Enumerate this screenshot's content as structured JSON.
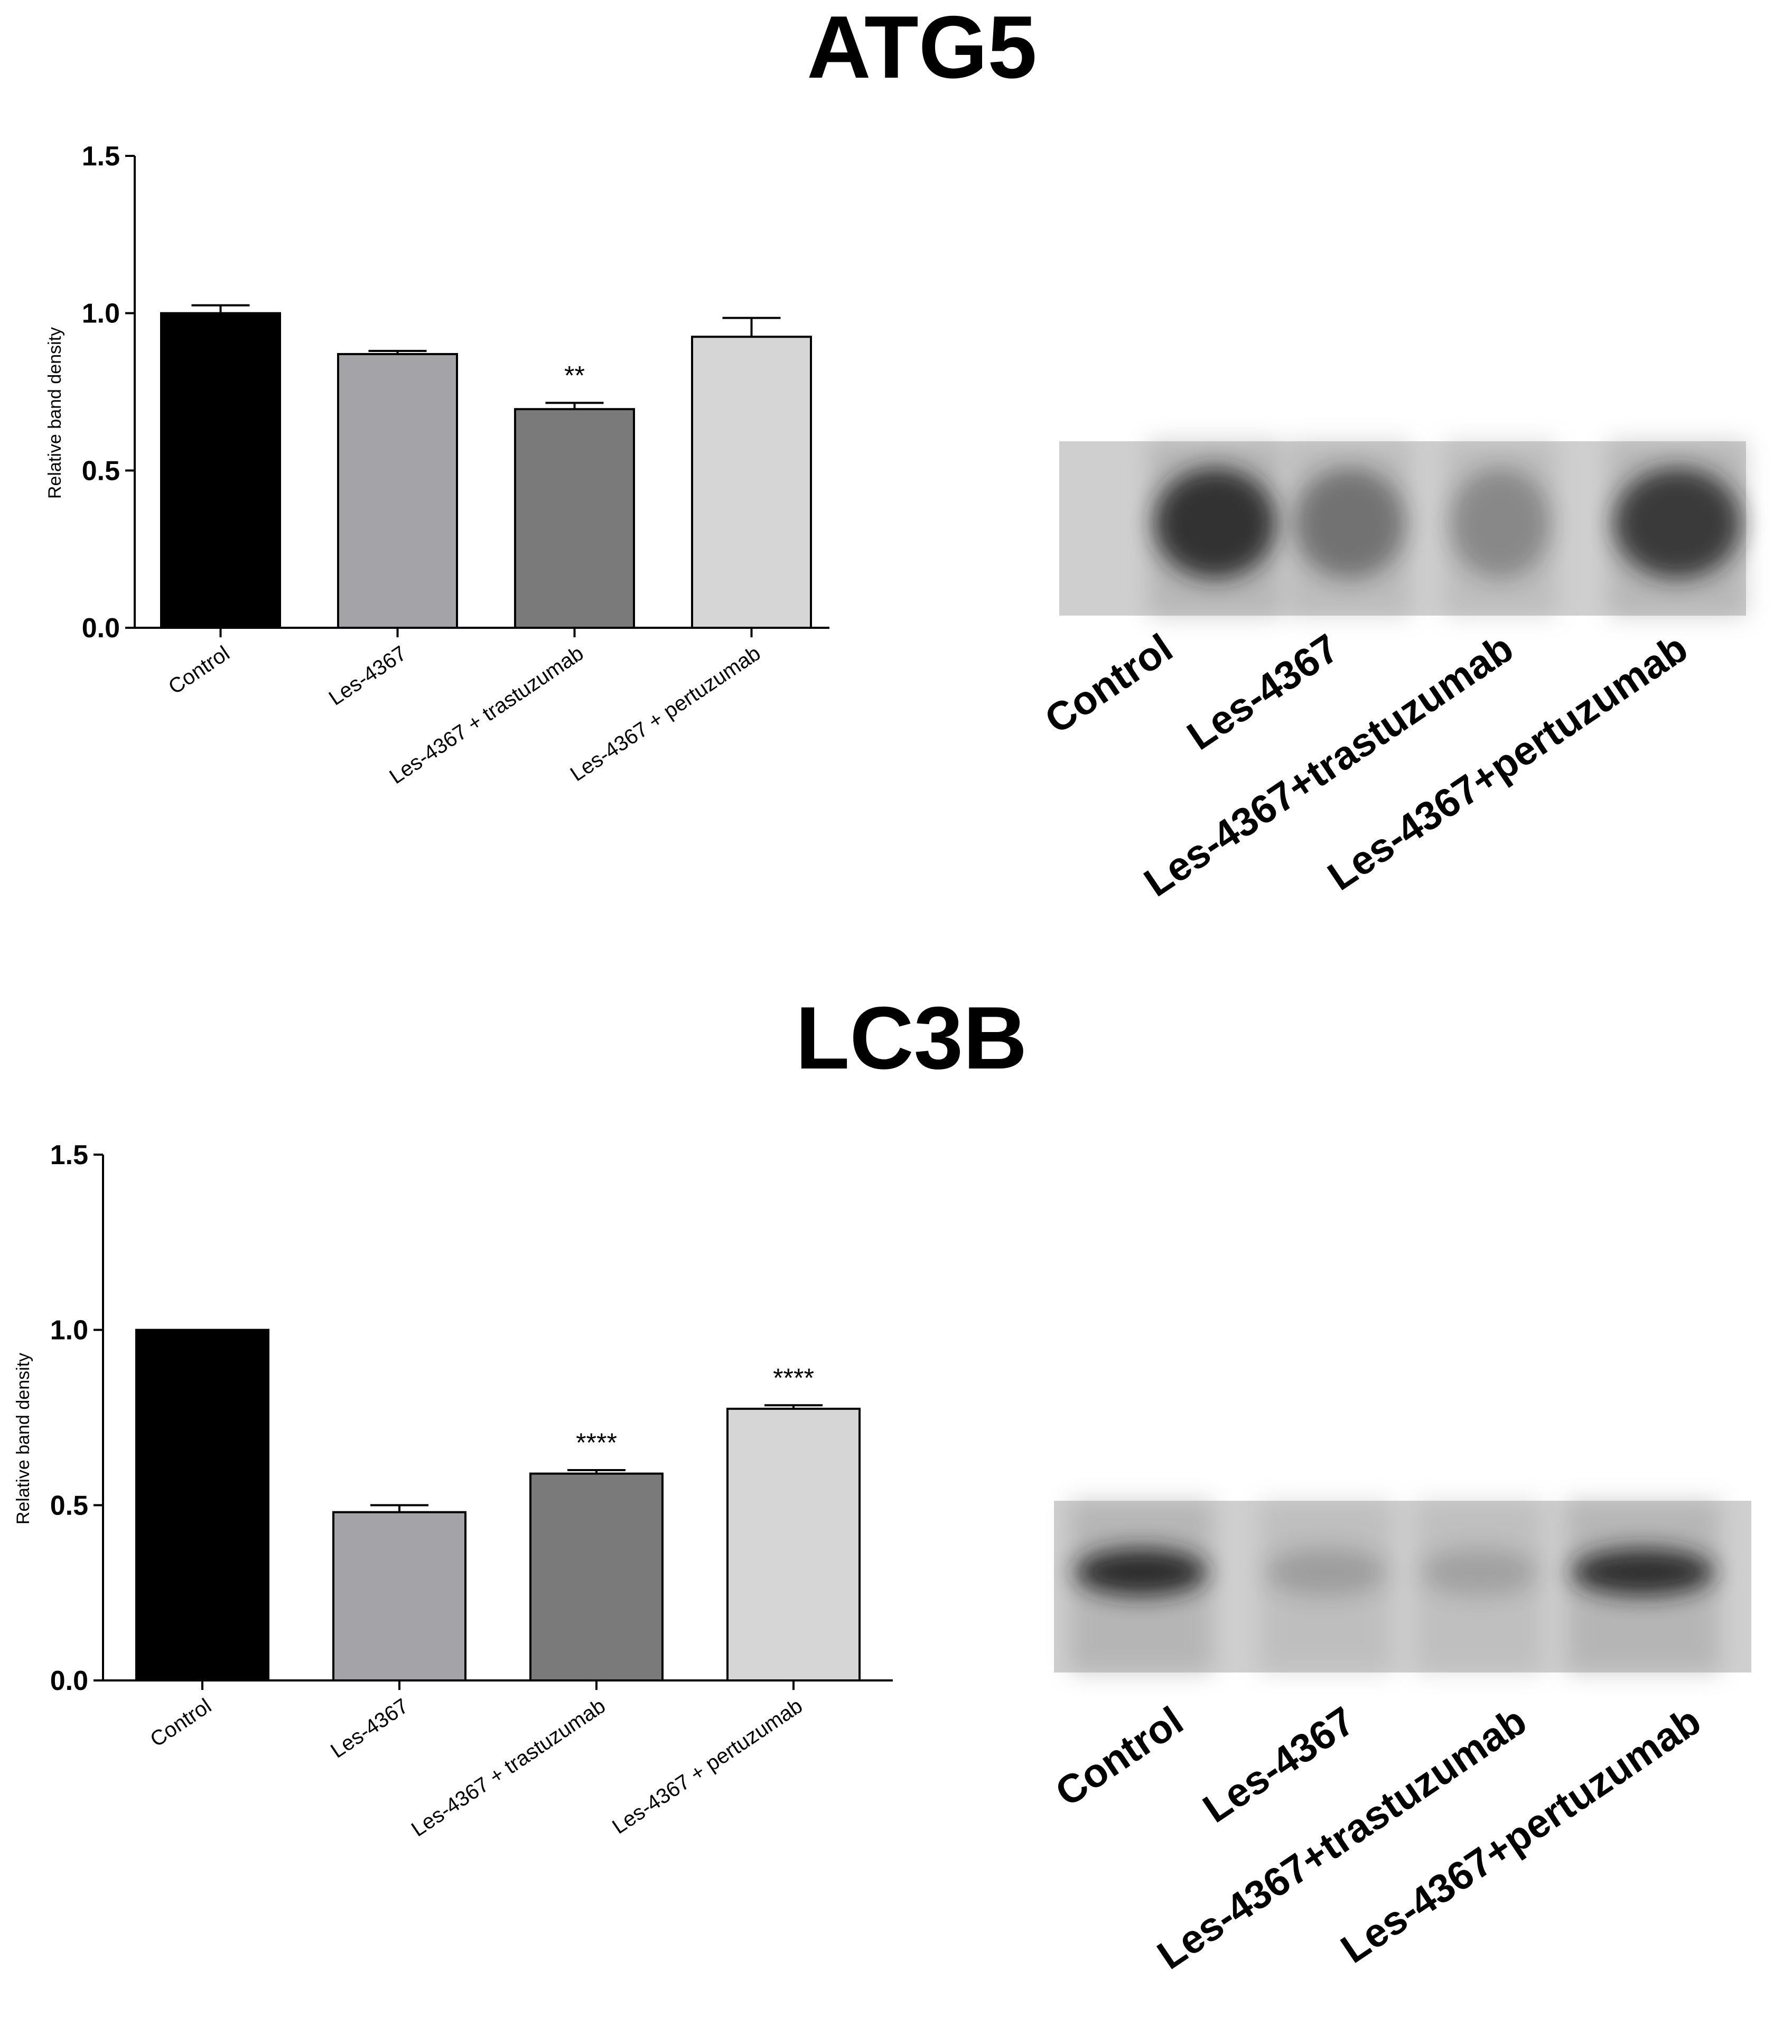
{
  "panels": [
    {
      "title": "ATG5",
      "chart_data": {
        "type": "bar",
        "categories": [
          "Control",
          "Les-4367",
          "Les-4367 + trastuzumab",
          "Les-4367 + pertuzumab"
        ],
        "values": [
          1.0,
          0.87,
          0.695,
          0.925
        ],
        "errors": [
          0.025,
          0.01,
          0.02,
          0.06
        ],
        "significance": [
          "",
          "",
          "**",
          ""
        ],
        "bar_colors": [
          "#000000",
          "#a3a3a8",
          "#7a7a7a",
          "#d6d6d6"
        ],
        "ylabel": "Relative band density",
        "ylim": [
          0,
          1.5
        ],
        "yticks": [
          "0.0",
          "0.5",
          "1.0",
          "1.5"
        ],
        "grid": false
      },
      "blot_labels": [
        "Control",
        "Les-4367",
        "Les-4367+trastuzumab",
        "Les-4367+pertuzumab"
      ],
      "blot_band_intensity": [
        0.85,
        0.45,
        0.32,
        0.8
      ]
    },
    {
      "title": "LC3B",
      "chart_data": {
        "type": "bar",
        "categories": [
          "Control",
          "Les-4367",
          "Les-4367 + trastuzumab",
          "Les-4367 + pertuzumab"
        ],
        "values": [
          1.0,
          0.48,
          0.59,
          0.775
        ],
        "errors": [
          0.0,
          0.02,
          0.01,
          0.01
        ],
        "significance": [
          "",
          "",
          "****",
          "****"
        ],
        "bar_colors": [
          "#000000",
          "#a3a3a8",
          "#7a7a7a",
          "#d6d6d6"
        ],
        "ylabel": "Relative band density",
        "ylim": [
          0,
          1.5
        ],
        "yticks": [
          "0.0",
          "0.5",
          "1.0",
          "1.5"
        ],
        "grid": false
      },
      "blot_labels": [
        "Control",
        "Les-4367",
        "Les-4367+trastuzumab",
        "Les-4367+pertuzumab"
      ],
      "blot_band_intensity": [
        0.9,
        0.2,
        0.18,
        0.88
      ]
    }
  ]
}
